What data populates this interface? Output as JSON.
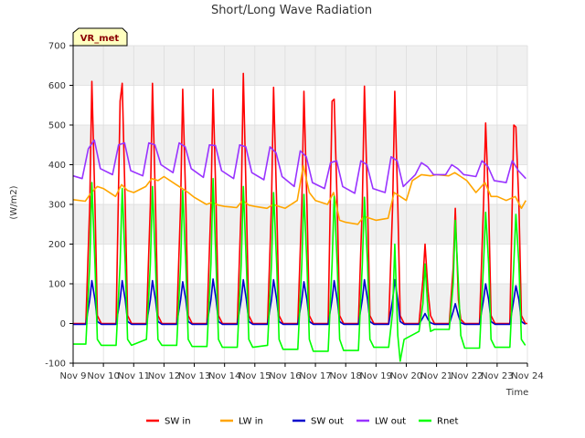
{
  "chart_data": {
    "type": "line",
    "title": "Short/Long Wave Radiation",
    "site_label": "VR_met",
    "xlabel": "Time",
    "ylabel": "(W/m2)",
    "ylim": [
      -100,
      700
    ],
    "yticks": [
      -100,
      0,
      100,
      200,
      300,
      400,
      500,
      600,
      700
    ],
    "xlim": [
      9,
      24
    ],
    "xticks": [
      9,
      10,
      11,
      12,
      13,
      14,
      15,
      16,
      17,
      18,
      19,
      20,
      21,
      22,
      23,
      24
    ],
    "xtick_labels": [
      "Nov 9",
      "Nov 10",
      "Nov 11",
      "Nov 12",
      "Nov 13",
      "Nov 14",
      "Nov 15",
      "Nov 16",
      "Nov 17",
      "Nov 18",
      "Nov 19",
      "Nov 20",
      "Nov 21",
      "Nov 22",
      "Nov 23",
      "Nov 24"
    ],
    "grid": true,
    "legend_position": "bottom",
    "colors": {
      "SW in": "#ff0000",
      "LW in": "#ffa500",
      "SW out": "#0000cc",
      "LW out": "#9933ff",
      "Rnet": "#00ff00"
    },
    "series": [
      {
        "name": "SW in",
        "x": [
          9.0,
          9.42,
          9.55,
          9.62,
          9.72,
          9.8,
          9.93,
          10.42,
          10.55,
          10.62,
          10.72,
          10.8,
          10.93,
          11.42,
          11.55,
          11.62,
          11.72,
          11.8,
          11.93,
          12.42,
          12.55,
          12.62,
          12.72,
          12.8,
          12.93,
          13.42,
          13.55,
          13.62,
          13.72,
          13.8,
          13.93,
          14.42,
          14.55,
          14.62,
          14.72,
          14.8,
          14.93,
          15.42,
          15.55,
          15.62,
          15.72,
          15.8,
          15.93,
          16.42,
          16.55,
          16.62,
          16.72,
          16.8,
          16.93,
          17.42,
          17.55,
          17.62,
          17.72,
          17.8,
          17.93,
          18.42,
          18.55,
          18.62,
          18.72,
          18.8,
          18.93,
          19.42,
          19.55,
          19.62,
          19.72,
          19.8,
          19.93,
          20.42,
          20.55,
          20.62,
          20.72,
          20.8,
          20.93,
          21.42,
          21.55,
          21.62,
          21.72,
          21.8,
          21.93,
          22.42,
          22.55,
          22.62,
          22.72,
          22.8,
          22.93,
          23.42,
          23.55,
          23.62,
          23.72,
          23.8,
          23.93,
          24.0
        ],
        "y": [
          0,
          0,
          300,
          610,
          300,
          20,
          0,
          0,
          560,
          605,
          300,
          20,
          0,
          0,
          300,
          605,
          300,
          20,
          0,
          0,
          300,
          590,
          300,
          20,
          0,
          0,
          300,
          590,
          300,
          20,
          0,
          0,
          300,
          630,
          300,
          20,
          0,
          0,
          300,
          595,
          300,
          20,
          0,
          0,
          300,
          585,
          300,
          20,
          0,
          0,
          560,
          565,
          300,
          20,
          0,
          0,
          300,
          598,
          300,
          20,
          0,
          0,
          300,
          585,
          300,
          20,
          0,
          0,
          110,
          200,
          80,
          20,
          0,
          0,
          140,
          290,
          60,
          10,
          0,
          0,
          300,
          505,
          300,
          20,
          0,
          0,
          500,
          495,
          300,
          20,
          0,
          0
        ]
      },
      {
        "name": "LW in",
        "x": [
          9.0,
          9.4,
          9.6,
          9.8,
          10.0,
          10.4,
          10.6,
          10.8,
          11.0,
          11.4,
          11.6,
          11.8,
          12.0,
          12.4,
          12.6,
          12.8,
          13.0,
          13.4,
          13.6,
          13.8,
          14.0,
          14.4,
          14.6,
          14.8,
          15.0,
          15.4,
          15.6,
          15.8,
          16.0,
          16.4,
          16.6,
          16.8,
          17.0,
          17.4,
          17.6,
          17.8,
          18.0,
          18.4,
          18.6,
          18.8,
          19.0,
          19.4,
          19.6,
          19.8,
          20.0,
          20.2,
          20.5,
          20.8,
          21.0,
          21.4,
          21.6,
          21.8,
          22.0,
          22.3,
          22.6,
          22.8,
          23.0,
          23.3,
          23.6,
          23.8,
          23.95
        ],
        "y": [
          312,
          308,
          330,
          345,
          340,
          320,
          350,
          335,
          330,
          345,
          365,
          360,
          370,
          350,
          340,
          330,
          318,
          300,
          305,
          298,
          295,
          292,
          310,
          298,
          295,
          290,
          300,
          295,
          290,
          310,
          398,
          330,
          310,
          300,
          330,
          260,
          255,
          250,
          270,
          265,
          260,
          265,
          330,
          320,
          310,
          360,
          375,
          372,
          375,
          372,
          380,
          370,
          360,
          330,
          355,
          320,
          320,
          310,
          320,
          290,
          310
        ]
      },
      {
        "name": "SW out",
        "x": [
          9.0,
          9.42,
          9.55,
          9.62,
          9.72,
          9.8,
          9.93,
          10.42,
          10.55,
          10.62,
          10.72,
          10.8,
          10.93,
          11.42,
          11.55,
          11.62,
          11.72,
          11.8,
          11.93,
          12.42,
          12.55,
          12.62,
          12.72,
          12.8,
          12.93,
          13.42,
          13.55,
          13.62,
          13.72,
          13.8,
          13.93,
          14.42,
          14.55,
          14.62,
          14.72,
          14.8,
          14.93,
          15.42,
          15.55,
          15.62,
          15.72,
          15.8,
          15.93,
          16.42,
          16.55,
          16.62,
          16.72,
          16.8,
          16.93,
          17.42,
          17.55,
          17.62,
          17.72,
          17.8,
          17.93,
          18.42,
          18.55,
          18.62,
          18.72,
          18.8,
          18.93,
          19.42,
          19.55,
          19.62,
          19.72,
          19.8,
          19.93,
          20.42,
          20.55,
          20.62,
          20.72,
          20.8,
          20.93,
          21.42,
          21.55,
          21.62,
          21.72,
          21.8,
          21.93,
          22.42,
          22.55,
          22.62,
          22.72,
          22.8,
          22.93,
          23.42,
          23.55,
          23.62,
          23.72,
          23.8,
          23.93
        ],
        "y": [
          -2,
          -2,
          60,
          108,
          60,
          5,
          -2,
          -2,
          60,
          108,
          60,
          5,
          -2,
          -2,
          60,
          108,
          60,
          5,
          -2,
          -2,
          60,
          105,
          60,
          5,
          -2,
          -2,
          60,
          112,
          60,
          5,
          -2,
          -2,
          60,
          110,
          60,
          5,
          -2,
          -2,
          60,
          110,
          60,
          5,
          -2,
          -2,
          60,
          105,
          60,
          5,
          -2,
          -2,
          60,
          108,
          60,
          5,
          -2,
          -2,
          60,
          110,
          60,
          5,
          -2,
          -2,
          60,
          110,
          60,
          5,
          -2,
          -2,
          15,
          25,
          10,
          2,
          -2,
          -2,
          30,
          50,
          20,
          2,
          -2,
          -2,
          60,
          100,
          60,
          5,
          -2,
          -2,
          60,
          95,
          60,
          5,
          -2
        ]
      },
      {
        "name": "LW out",
        "x": [
          9.0,
          9.3,
          9.5,
          9.7,
          9.9,
          10.3,
          10.5,
          10.7,
          10.9,
          11.3,
          11.5,
          11.7,
          11.9,
          12.3,
          12.5,
          12.7,
          12.9,
          13.3,
          13.5,
          13.7,
          13.9,
          14.3,
          14.5,
          14.7,
          14.9,
          15.3,
          15.5,
          15.7,
          15.9,
          16.3,
          16.5,
          16.7,
          16.9,
          17.3,
          17.5,
          17.7,
          17.9,
          18.3,
          18.5,
          18.7,
          18.9,
          19.3,
          19.5,
          19.7,
          19.9,
          20.3,
          20.5,
          20.7,
          20.9,
          21.3,
          21.5,
          21.7,
          21.9,
          22.3,
          22.5,
          22.7,
          22.9,
          23.3,
          23.5,
          23.7,
          23.95
        ],
        "y": [
          372,
          365,
          440,
          462,
          390,
          375,
          450,
          455,
          385,
          372,
          455,
          450,
          400,
          380,
          455,
          445,
          390,
          368,
          450,
          448,
          385,
          365,
          450,
          445,
          380,
          362,
          445,
          430,
          370,
          345,
          435,
          420,
          355,
          340,
          405,
          410,
          345,
          328,
          410,
          400,
          340,
          330,
          420,
          410,
          345,
          375,
          405,
          395,
          375,
          375,
          400,
          390,
          375,
          370,
          410,
          395,
          360,
          355,
          410,
          385,
          365
        ]
      },
      {
        "name": "Rnet",
        "x": [
          9.0,
          9.42,
          9.55,
          9.62,
          9.72,
          9.8,
          9.93,
          10.42,
          10.55,
          10.62,
          10.72,
          10.8,
          10.93,
          11.42,
          11.55,
          11.62,
          11.72,
          11.8,
          11.93,
          12.42,
          12.55,
          12.62,
          12.72,
          12.8,
          12.93,
          13.42,
          13.55,
          13.62,
          13.72,
          13.8,
          13.93,
          14.42,
          14.55,
          14.62,
          14.72,
          14.8,
          14.93,
          15.42,
          15.55,
          15.62,
          15.72,
          15.8,
          15.93,
          16.42,
          16.55,
          16.62,
          16.72,
          16.8,
          16.93,
          17.42,
          17.55,
          17.62,
          17.72,
          17.8,
          17.93,
          18.42,
          18.55,
          18.62,
          18.72,
          18.8,
          18.93,
          19.42,
          19.55,
          19.62,
          19.72,
          19.8,
          19.93,
          20.42,
          20.55,
          20.62,
          20.72,
          20.8,
          20.93,
          21.42,
          21.55,
          21.62,
          21.72,
          21.8,
          21.93,
          22.42,
          22.55,
          22.62,
          22.72,
          22.8,
          22.93,
          23.42,
          23.55,
          23.62,
          23.72,
          23.8,
          23.93
        ],
        "y": [
          -52,
          -52,
          150,
          355,
          150,
          -40,
          -55,
          -55,
          150,
          340,
          150,
          -40,
          -55,
          -40,
          150,
          345,
          150,
          -40,
          -55,
          -55,
          150,
          335,
          150,
          -40,
          -58,
          -58,
          150,
          365,
          150,
          -40,
          -60,
          -60,
          150,
          345,
          150,
          -40,
          -60,
          -55,
          150,
          330,
          150,
          -40,
          -65,
          -65,
          150,
          325,
          150,
          -40,
          -70,
          -70,
          150,
          320,
          150,
          -40,
          -68,
          -68,
          150,
          318,
          150,
          -40,
          -60,
          -60,
          30,
          200,
          -30,
          -95,
          -40,
          -20,
          50,
          150,
          30,
          -20,
          -15,
          -15,
          100,
          260,
          100,
          -30,
          -62,
          -62,
          150,
          280,
          150,
          -40,
          -60,
          -60,
          150,
          275,
          150,
          -40,
          -55
        ]
      }
    ]
  }
}
